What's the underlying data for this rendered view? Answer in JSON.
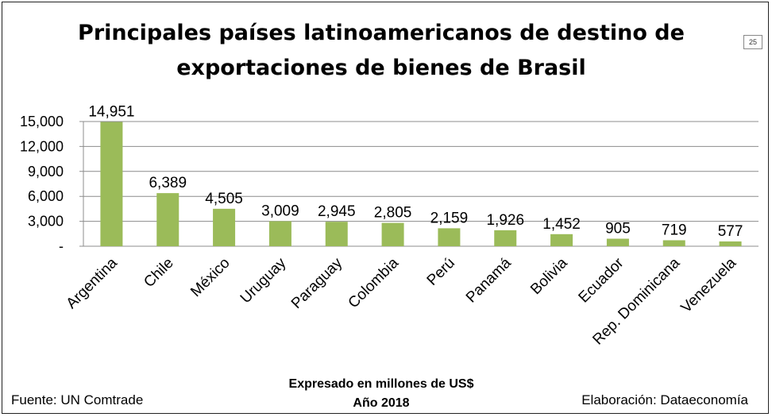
{
  "page_number": "25",
  "footer": {
    "source": "Fuente: UN Comtrade",
    "units": "Expresado en millones de US$",
    "year": "Año 2018",
    "credit": "Elaboración: Dataeconomía"
  },
  "chart_data": {
    "type": "bar",
    "title_line1": "Principales países latinoamericanos de destino de",
    "title_line2": "exportaciones de bienes de Brasil",
    "categories": [
      "Argentina",
      "Chile",
      "México",
      "Uruguay",
      "Paraguay",
      "Colombia",
      "Perú",
      "Panamá",
      "Bolivia",
      "Ecuador",
      "Rep. Dominicana",
      "Venezuela"
    ],
    "values": [
      14951,
      6389,
      4505,
      3009,
      2945,
      2805,
      2159,
      1926,
      1452,
      905,
      719,
      577
    ],
    "value_labels": [
      "14,951",
      "6,389",
      "4,505",
      "3,009",
      "2,945",
      "2,805",
      "2,159",
      "1,926",
      "1,452",
      "905",
      "719",
      "577"
    ],
    "yticks": [
      0,
      3000,
      6000,
      9000,
      12000,
      15000
    ],
    "ytick_labels": [
      "-",
      "3,000",
      "6,000",
      "9,000",
      "12,000",
      "15,000"
    ],
    "ylim": [
      0,
      15000
    ],
    "grid": true,
    "bar_color": "#9bbb59",
    "grid_color": "#8c8c8c"
  }
}
